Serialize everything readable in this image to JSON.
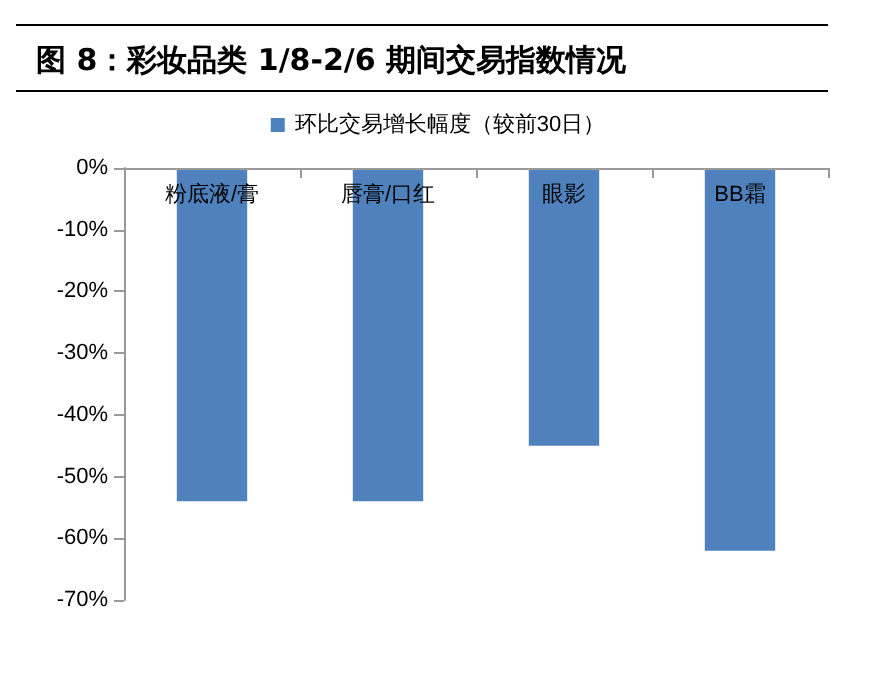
{
  "chart_data": {
    "type": "bar",
    "title": "图 8：彩妆品类 1/8-2/6 期间交易指数情况",
    "categories": [
      "粉底液/膏",
      "唇膏/口红",
      "眼影",
      "BB霜"
    ],
    "series": [
      {
        "name": "环比交易增长幅度（较前30日）",
        "color": "#4f81bd",
        "values": [
          -54,
          -54,
          -45,
          -62
        ]
      }
    ],
    "ylim": [
      -70,
      0
    ],
    "yticks": [
      {
        "value": 0,
        "label": "0%"
      },
      {
        "value": -10,
        "label": "-10%"
      },
      {
        "value": -20,
        "label": "-20%"
      },
      {
        "value": -30,
        "label": "-30%"
      },
      {
        "value": -40,
        "label": "-40%"
      },
      {
        "value": -50,
        "label": "-50%"
      },
      {
        "value": -60,
        "label": "-60%"
      },
      {
        "value": -70,
        "label": "-70%"
      }
    ],
    "grid": false,
    "legend": "top"
  }
}
